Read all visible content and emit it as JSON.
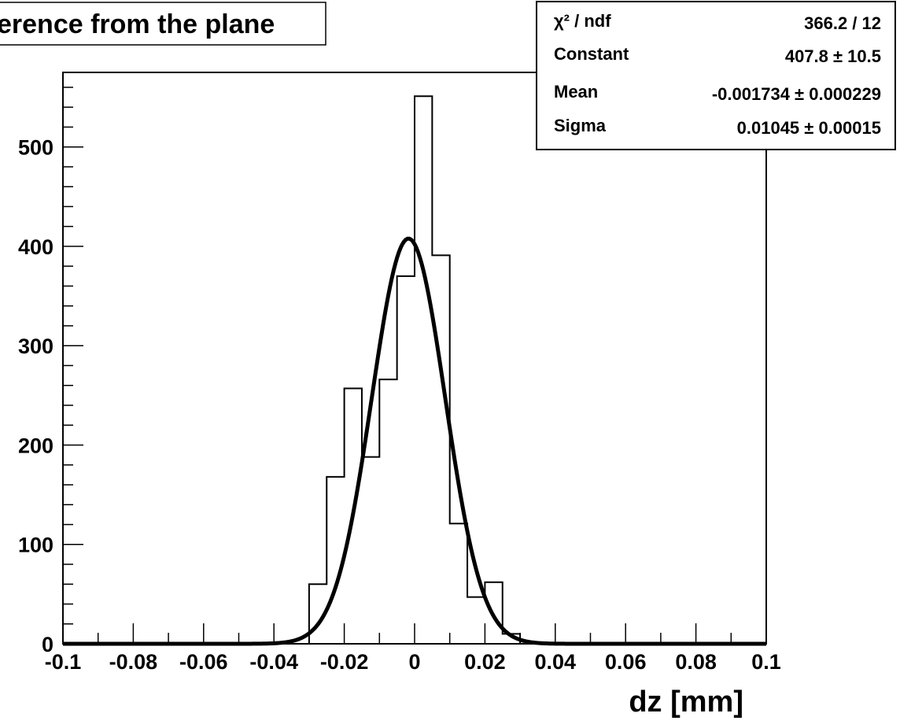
{
  "chart_data": {
    "type": "bar",
    "title": "erence from the plane",
    "xlabel": "dz [mm]",
    "ylabel": "",
    "xlim": [
      -0.1,
      0.1
    ],
    "ylim": [
      0,
      575
    ],
    "x_ticks": [
      "-0.1",
      "-0.08",
      "-0.06",
      "-0.04",
      "-0.02",
      "0",
      "0.02",
      "0.04",
      "0.06",
      "0.08",
      "0.1"
    ],
    "y_ticks": [
      "0",
      "100",
      "200",
      "300",
      "400",
      "500"
    ],
    "bin_edges": [
      -0.03,
      -0.025,
      -0.02,
      -0.015,
      -0.01,
      -0.005,
      0.0,
      0.005,
      0.01,
      0.015,
      0.02,
      0.025,
      0.03
    ],
    "values": [
      60,
      168,
      257,
      188,
      266,
      370,
      551,
      391,
      121,
      47,
      62,
      10
    ],
    "fit": {
      "function": "gaus",
      "constant": 407.8,
      "mean": -0.001734,
      "sigma": 0.01045
    },
    "stats_box": [
      {
        "label": "χ² / ndf",
        "value": "366.2 / 12"
      },
      {
        "label": "Constant",
        "value": "407.8 ± 10.5"
      },
      {
        "label": "Mean",
        "value": "-0.001734 ± 0.000229"
      },
      {
        "label": "Sigma",
        "value": "0.01045 ± 0.00015"
      }
    ],
    "grid": false,
    "legend": "none"
  }
}
